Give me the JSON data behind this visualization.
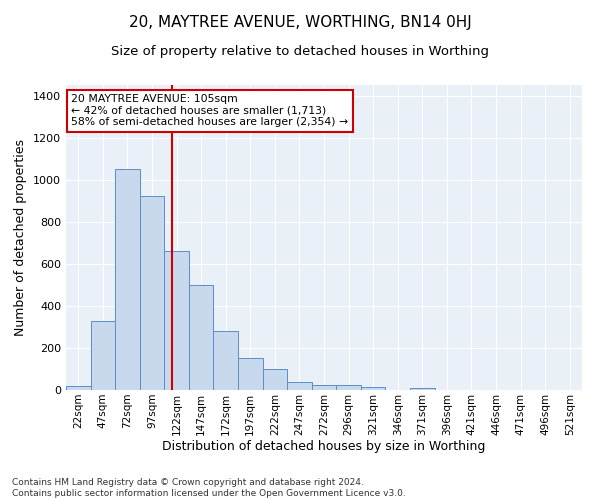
{
  "title": "20, MAYTREE AVENUE, WORTHING, BN14 0HJ",
  "subtitle": "Size of property relative to detached houses in Worthing",
  "xlabel": "Distribution of detached houses by size in Worthing",
  "ylabel": "Number of detached properties",
  "bar_labels": [
    "22sqm",
    "47sqm",
    "72sqm",
    "97sqm",
    "122sqm",
    "147sqm",
    "172sqm",
    "197sqm",
    "222sqm",
    "247sqm",
    "272sqm",
    "296sqm",
    "321sqm",
    "346sqm",
    "371sqm",
    "396sqm",
    "421sqm",
    "446sqm",
    "471sqm",
    "496sqm",
    "521sqm"
  ],
  "bar_values": [
    20,
    330,
    1050,
    920,
    660,
    500,
    280,
    150,
    100,
    40,
    25,
    25,
    15,
    0,
    10,
    0,
    0,
    0,
    0,
    0,
    0
  ],
  "bar_color": "#c9d9ed",
  "bar_edge_color": "#5b8fc9",
  "vline_color": "#cc0000",
  "annotation_text": "20 MAYTREE AVENUE: 105sqm\n← 42% of detached houses are smaller (1,713)\n58% of semi-detached houses are larger (2,354) →",
  "annotation_box_color": "#ffffff",
  "annotation_box_edge": "#cc0000",
  "ylim": [
    0,
    1450
  ],
  "yticks": [
    0,
    200,
    400,
    600,
    800,
    1000,
    1200,
    1400
  ],
  "background_color": "#eaf0f8",
  "footer_text": "Contains HM Land Registry data © Crown copyright and database right 2024.\nContains public sector information licensed under the Open Government Licence v3.0.",
  "title_fontsize": 11,
  "subtitle_fontsize": 9.5,
  "xlabel_fontsize": 9,
  "ylabel_fontsize": 9,
  "footer_fontsize": 6.5,
  "tick_fontsize": 7.5,
  "ytick_fontsize": 8
}
